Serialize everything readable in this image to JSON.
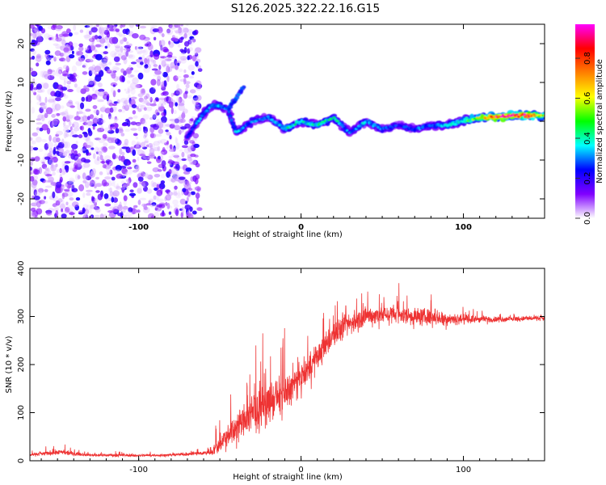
{
  "title": "S126.2025.322.22.16.G15",
  "chart_data": [
    {
      "type": "heatmap",
      "xlabel": "Height of straight line (km)",
      "ylabel": "Frequency (Hz)",
      "xlim": [
        -167,
        150
      ],
      "ylim": [
        -25,
        25
      ],
      "x_ticks": [
        -100,
        0,
        100
      ],
      "y_ticks": [
        20,
        10,
        0,
        -10,
        -20
      ],
      "x_tick_labels": [
        "-100",
        "0",
        "100"
      ],
      "y_tick_labels": [
        "20",
        "10",
        "0",
        "-10",
        "-20"
      ],
      "noise_region_x": [
        -167,
        -62
      ],
      "ridge": {
        "x": [
          -70,
          -60,
          -55,
          -50,
          -45,
          -40,
          -30,
          -20,
          -10,
          0,
          10,
          20,
          30,
          40,
          50,
          60,
          70,
          80,
          90,
          100,
          110,
          120,
          130,
          140,
          150
        ],
        "y": [
          -4,
          2,
          4,
          4,
          3,
          -3,
          0,
          1,
          -2,
          0,
          -1,
          1,
          -3,
          0,
          -2,
          -1,
          -2,
          -1,
          -1,
          0,
          1,
          1,
          1.5,
          1.5,
          1.5
        ],
        "amplitude": [
          0.25,
          0.35,
          0.35,
          0.35,
          0.3,
          0.35,
          0.3,
          0.3,
          0.4,
          0.4,
          0.4,
          0.4,
          0.3,
          0.35,
          0.3,
          0.25,
          0.3,
          0.3,
          0.35,
          0.45,
          0.6,
          0.9,
          0.9,
          0.85,
          0.6
        ]
      },
      "spur": {
        "x": [
          -45,
          -35
        ],
        "y": [
          3,
          9
        ]
      },
      "colorbar": {
        "label": "Normalized spectral amplitude",
        "range": [
          0,
          0.97
        ],
        "ticks": [
          0.0,
          0.2,
          0.4,
          0.6,
          0.8
        ],
        "tick_labels": [
          "0.0",
          "0.2",
          "0.4",
          "0.6",
          "0.8"
        ],
        "colors": [
          "#ffffff",
          "#8000ff",
          "#0000ff",
          "#00ffff",
          "#00ff00",
          "#ffff00",
          "#ff8000",
          "#ff0000",
          "#ff00ff"
        ]
      }
    },
    {
      "type": "line",
      "xlabel": "Height of straight line (km)",
      "ylabel": "SNR (10 * v/v)",
      "xlim": [
        -167,
        150
      ],
      "ylim": [
        0,
        400
      ],
      "x_ticks": [
        -100,
        0,
        100
      ],
      "y_ticks": [
        0,
        100,
        200,
        300,
        400
      ],
      "x_tick_labels": [
        "-100",
        "0",
        "100"
      ],
      "y_tick_labels": [
        "0",
        "100",
        "200",
        "300",
        "400"
      ],
      "series": [
        {
          "color": "#ee3333",
          "x": [
            -167,
            -150,
            -130,
            -100,
            -80,
            -70,
            -60,
            -55,
            -50,
            -45,
            -40,
            -35,
            -30,
            -25,
            -20,
            -15,
            -10,
            -5,
            0,
            5,
            10,
            15,
            20,
            25,
            30,
            35,
            40,
            50,
            60,
            70,
            80,
            90,
            100,
            110,
            120,
            130,
            140,
            150
          ],
          "y": [
            12,
            18,
            12,
            11,
            12,
            14,
            16,
            20,
            35,
            55,
            70,
            85,
            95,
            110,
            120,
            130,
            140,
            155,
            170,
            195,
            215,
            240,
            260,
            275,
            285,
            292,
            300,
            305,
            305,
            300,
            298,
            296,
            294,
            294,
            294,
            295,
            296,
            296
          ],
          "noise": [
            4,
            8,
            4,
            4,
            4,
            5,
            6,
            15,
            25,
            35,
            45,
            50,
            55,
            60,
            60,
            60,
            55,
            50,
            45,
            40,
            40,
            38,
            35,
            35,
            35,
            32,
            30,
            30,
            30,
            28,
            25,
            20,
            14,
            10,
            9,
            8,
            8,
            8
          ]
        }
      ]
    }
  ]
}
